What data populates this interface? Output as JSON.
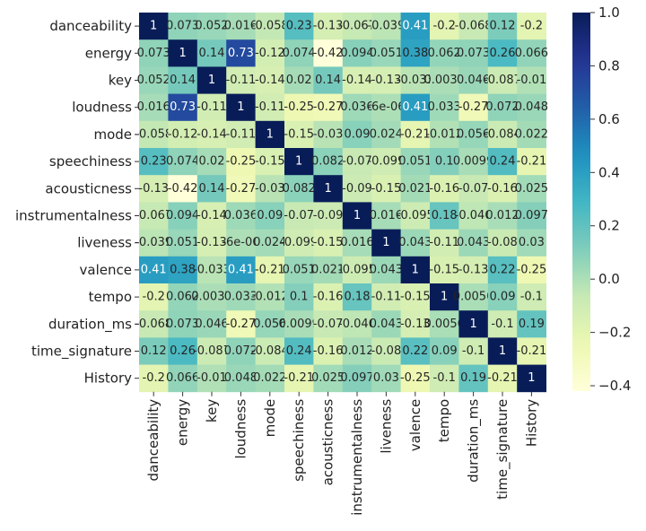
{
  "chart_data": {
    "type": "heatmap",
    "title": "",
    "xlabel": "",
    "ylabel": "",
    "labels": [
      "danceability",
      "energy",
      "key",
      "loudness",
      "mode",
      "speechiness",
      "acousticness",
      "instrumentalness",
      "liveness",
      "valence",
      "tempo",
      "duration_ms",
      "time_signature",
      "History"
    ],
    "values": [
      [
        1,
        0.073,
        0.052,
        0.016,
        -0.058,
        0.23,
        -0.13,
        -0.067,
        -0.039,
        0.41,
        -0.2,
        -0.068,
        0.12,
        -0.2
      ],
      [
        0.073,
        1,
        0.14,
        0.73,
        -0.12,
        0.074,
        -0.42,
        0.094,
        0.051,
        0.38,
        0.062,
        0.073,
        0.26,
        0.066
      ],
      [
        0.052,
        0.14,
        1,
        -0.11,
        -0.14,
        0.02,
        0.14,
        -0.14,
        -0.13,
        -0.033,
        0.0037,
        0.046,
        -0.087,
        -0.01
      ],
      [
        0.016,
        0.73,
        -0.11,
        1,
        -0.11,
        -0.25,
        -0.27,
        0.036,
        -6e-06,
        0.41,
        0.033,
        -0.27,
        0.072,
        0.048
      ],
      [
        -0.058,
        -0.12,
        -0.14,
        -0.11,
        1,
        -0.15,
        -0.03,
        0.09,
        0.024,
        -0.21,
        -0.012,
        0.056,
        -0.084,
        0.022
      ],
      [
        0.23,
        0.074,
        0.02,
        -0.25,
        -0.15,
        1,
        0.082,
        -0.07,
        -0.099,
        0.051,
        0.1,
        0.0099,
        0.24,
        -0.21
      ],
      [
        -0.13,
        -0.42,
        0.14,
        -0.27,
        -0.03,
        0.082,
        1,
        -0.09,
        -0.15,
        0.021,
        -0.16,
        -0.07,
        -0.16,
        0.025
      ],
      [
        -0.067,
        0.094,
        -0.14,
        0.036,
        0.09,
        -0.07,
        -0.09,
        1,
        0.016,
        -0.095,
        0.18,
        -0.046,
        0.012,
        0.097
      ],
      [
        -0.039,
        0.051,
        -0.13,
        -6e-06,
        0.024,
        -0.099,
        -0.15,
        0.016,
        1,
        0.043,
        -0.11,
        0.043,
        -0.08,
        0.03
      ],
      [
        0.41,
        0.38,
        -0.033,
        0.41,
        -0.21,
        0.051,
        0.021,
        -0.095,
        0.043,
        1,
        -0.15,
        -0.13,
        0.22,
        -0.25
      ],
      [
        -0.2,
        0.062,
        0.0037,
        0.033,
        -0.012,
        0.1,
        -0.16,
        0.18,
        -0.11,
        -0.15,
        1,
        0.0056,
        0.09,
        -0.1
      ],
      [
        -0.068,
        0.073,
        0.046,
        -0.27,
        0.056,
        0.0099,
        -0.07,
        -0.046,
        0.043,
        -0.13,
        0.0056,
        1,
        -0.1,
        0.19
      ],
      [
        0.12,
        0.26,
        -0.087,
        0.072,
        -0.084,
        0.24,
        -0.16,
        0.012,
        -0.08,
        0.22,
        0.09,
        -0.1,
        1,
        -0.21
      ],
      [
        -0.2,
        0.066,
        -0.01,
        0.048,
        0.022,
        -0.21,
        0.025,
        0.097,
        0.03,
        -0.25,
        -0.1,
        0.19,
        -0.21,
        1
      ]
    ],
    "display_text": [
      [
        "1",
        "0.073",
        "0.052",
        "0.016",
        "-0.058",
        "0.23",
        "-0.13",
        "-0.067",
        "-0.039",
        "0.41",
        "-0.2",
        "-0.068",
        "0.12",
        "-0.2"
      ],
      [
        "0.073",
        "1",
        "0.14",
        "0.73",
        "-0.12",
        "0.074",
        "-0.42",
        "0.094",
        "0.051",
        "0.38",
        "0.062",
        "0.073",
        "0.26",
        "0.066"
      ],
      [
        "0.052",
        "0.14",
        "1",
        "-0.11",
        "-0.14",
        "0.02",
        "0.14",
        "-0.14",
        "-0.13",
        "-0.033",
        "0.0037",
        "0.046",
        "-0.087",
        "-0.01"
      ],
      [
        "0.016",
        "0.73",
        "-0.11",
        "1",
        "-0.11",
        "-0.25",
        "-0.27",
        "0.036",
        "-6e-06",
        "0.41",
        "0.033",
        "-0.27",
        "0.072",
        "0.048"
      ],
      [
        "-0.058",
        "-0.12",
        "-0.14",
        "-0.11",
        "1",
        "-0.15",
        "-0.03",
        "0.09",
        "0.024",
        "-0.21",
        "-0.012",
        "0.056",
        "-0.084",
        "0.022"
      ],
      [
        "0.23",
        "0.074",
        "0.02",
        "-0.25",
        "-0.15",
        "1",
        "0.082",
        "-0.07",
        "-0.099",
        "0.051",
        "0.1",
        "0.0099",
        "0.24",
        "-0.21"
      ],
      [
        "-0.13",
        "-0.42",
        "0.14",
        "-0.27",
        "-0.03",
        "0.082",
        "1",
        "-0.09",
        "-0.15",
        "0.021",
        "-0.16",
        "-0.07",
        "-0.16",
        "0.025"
      ],
      [
        "-0.067",
        "0.094",
        "-0.14",
        "0.036",
        "0.09",
        "-0.07",
        "-0.09",
        "1",
        "0.016",
        "-0.095",
        "0.18",
        "-0.046",
        "0.012",
        "0.097"
      ],
      [
        "-0.039",
        "0.051",
        "-0.13",
        "-6e-06",
        "0.024",
        "-0.099",
        "-0.15",
        "0.016",
        "1",
        "0.043",
        "-0.11",
        "0.043",
        "-0.08",
        "0.03"
      ],
      [
        "0.41",
        "0.38",
        "-0.033",
        "0.41",
        "-0.21",
        "0.051",
        "0.021",
        "-0.095",
        "0.043",
        "1",
        "-0.15",
        "-0.13",
        "0.22",
        "-0.25"
      ],
      [
        "-0.2",
        "0.062",
        "0.0037",
        "0.033",
        "-0.012",
        "0.1",
        "-0.16",
        "0.18",
        "-0.11",
        "-0.15",
        "1",
        "0.0056",
        "0.09",
        "-0.1"
      ],
      [
        "-0.068",
        "0.073",
        "0.046",
        "-0.27",
        "0.056",
        "0.0099",
        "-0.07",
        "-0.046",
        "0.043",
        "-0.13",
        "0.0056",
        "1",
        "-0.1",
        "0.19"
      ],
      [
        "0.12",
        "0.26",
        "-0.087",
        "0.072",
        "-0.084",
        "0.24",
        "-0.16",
        "0.012",
        "-0.08",
        "0.22",
        "0.09",
        "-0.1",
        "1",
        "-0.21"
      ],
      [
        "-0.2",
        "0.066",
        "-0.01",
        "0.048",
        "0.022",
        "-0.21",
        "0.025",
        "0.097",
        "0.03",
        "-0.25",
        "-0.1",
        "0.19",
        "-0.21",
        "1"
      ]
    ],
    "colorbar": {
      "vmin": -0.42,
      "vmax": 1.0,
      "ticks": [
        1.0,
        0.8,
        0.6,
        0.4,
        0.2,
        0.0,
        -0.2,
        -0.4
      ],
      "tick_labels": [
        "1.0",
        "0.8",
        "0.6",
        "0.4",
        "0.2",
        "0.0",
        "−0.2",
        "−0.4"
      ],
      "colormap": "YlGnBu"
    },
    "grid": false,
    "legend": "colorbar-right"
  }
}
